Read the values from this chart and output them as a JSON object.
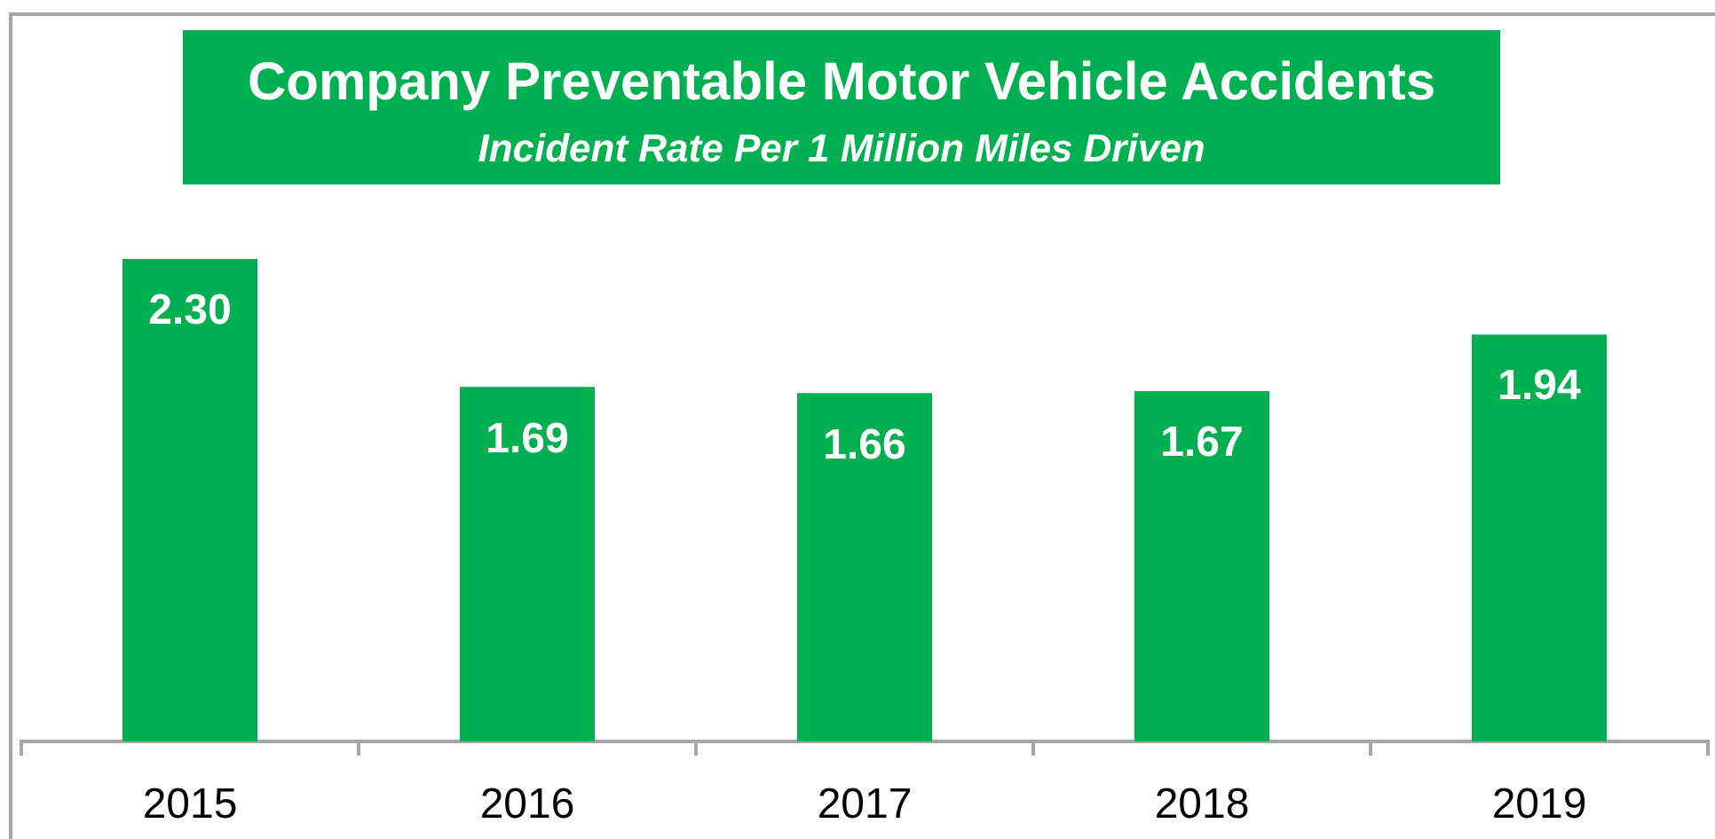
{
  "chart_data": {
    "type": "bar",
    "title": "Company Preventable Motor Vehicle Accidents",
    "subtitle": "Incident Rate Per 1 Million Miles Driven",
    "categories": [
      "2015",
      "2016",
      "2017",
      "2018",
      "2019"
    ],
    "values": [
      2.3,
      1.69,
      1.66,
      1.67,
      1.94
    ],
    "value_labels": [
      "2.30",
      "1.69",
      "1.66",
      "1.67",
      "1.94"
    ],
    "color": "#00b050",
    "tick_labels": "x"
  }
}
